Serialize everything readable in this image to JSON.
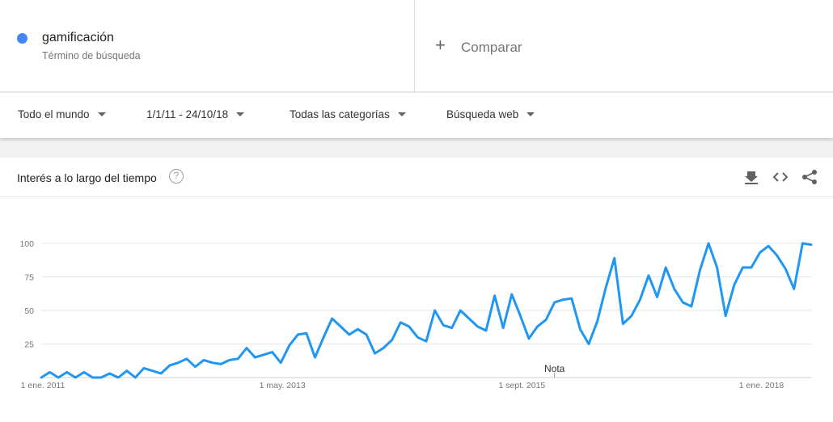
{
  "term": {
    "name": "gamificación",
    "subtitle": "Término de búsqueda",
    "color": "#4285f4"
  },
  "compare": {
    "label": "Comparar",
    "icon": "plus-icon"
  },
  "filters": {
    "region": "Todo el mundo",
    "date_range": "1/1/11 - 24/10/18",
    "category": "Todas las categorías",
    "search_type": "Búsqueda web"
  },
  "panel": {
    "title": "Interés a lo largo del tiempo",
    "help_icon": "?",
    "tools": [
      "download-icon",
      "embed-code-icon",
      "share-icon"
    ]
  },
  "chart_data": {
    "type": "line",
    "title": "Interés a lo largo del tiempo",
    "y_ticks": [
      "100",
      "75",
      "50",
      "25"
    ],
    "ylim": [
      0,
      100
    ],
    "x_ticks": [
      {
        "label": "1 ene. 2011",
        "month_index": 0
      },
      {
        "label": "1 may. 2013",
        "month_index": 28
      },
      {
        "label": "1 sept. 2015",
        "month_index": 56
      },
      {
        "label": "1 ene. 2018",
        "month_index": 84
      }
    ],
    "annotation": {
      "label": "Nota",
      "month_index": 60
    },
    "grid": true,
    "series_color": "#2196f3",
    "series": [
      {
        "values": [
          0,
          4,
          0,
          4,
          0,
          4,
          0,
          0,
          3,
          0,
          5,
          0,
          7,
          5,
          3,
          9,
          11,
          14,
          8,
          13,
          11,
          10,
          13,
          14,
          22,
          15,
          17,
          19,
          11,
          24,
          32,
          33,
          15,
          30,
          44,
          38,
          32,
          36,
          32,
          18,
          22,
          28,
          41,
          38,
          30,
          27,
          50,
          39,
          37,
          50,
          44,
          38,
          35,
          61,
          37,
          62,
          46,
          29,
          38,
          43,
          56,
          58,
          59,
          36,
          25,
          42,
          67,
          89,
          40,
          46,
          58,
          76,
          60,
          82,
          66,
          56,
          53,
          80,
          100,
          82,
          46,
          69,
          82,
          82,
          93,
          98,
          91,
          81,
          66,
          100,
          99
        ]
      }
    ]
  }
}
